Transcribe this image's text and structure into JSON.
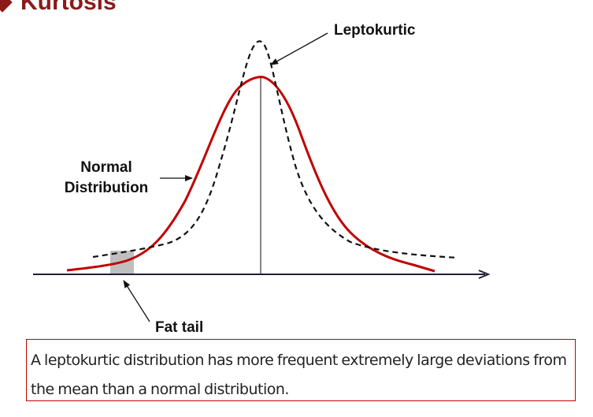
{
  "title": "Kurtosis",
  "colors": {
    "title": "#8b1a1a",
    "normal_curve": "#c00000",
    "leptokurtic_curve": "#000000",
    "fat_tail_box": "#bfbfbf",
    "caption_border": "#c00000"
  },
  "labels": {
    "leptokurtic": "Leptokurtic",
    "normal_line1": "Normal",
    "normal_line2": "Distribution",
    "fat_tail": "Fat tail"
  },
  "caption": "A leptokurtic distribution has more frequent extremely large deviations from the mean than a normal distribution."
}
